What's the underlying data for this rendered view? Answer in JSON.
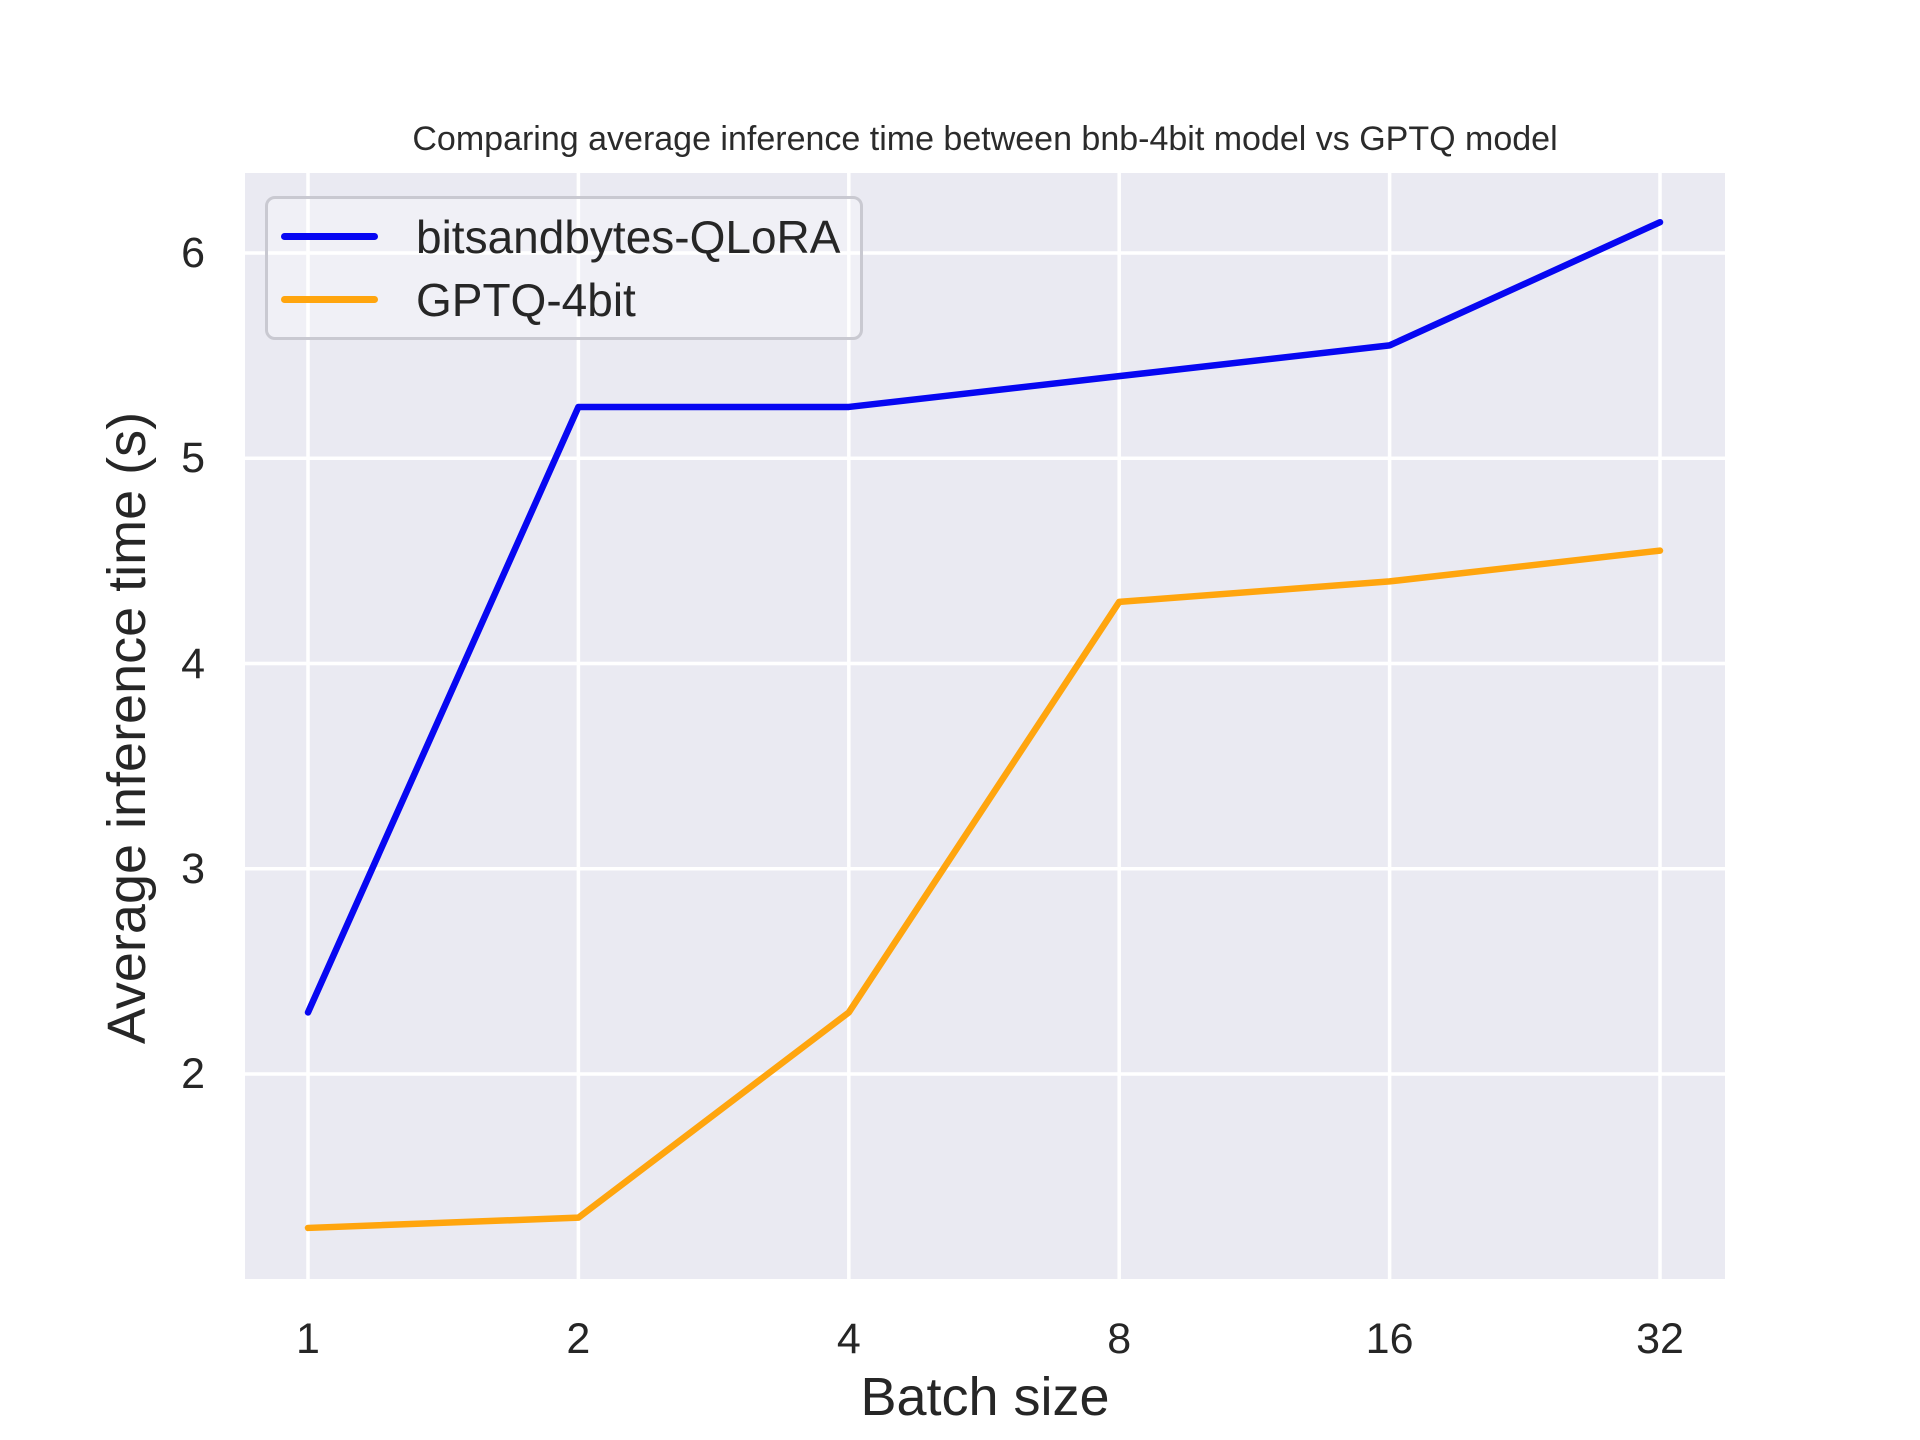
{
  "chart_data": {
    "type": "line",
    "title": "Comparing average inference time between bnb-4bit model vs GPTQ model",
    "xlabel": "Batch size",
    "ylabel": "Average inference time (s)",
    "x_scale": "log2",
    "categories": [
      1,
      2,
      4,
      8,
      16,
      32
    ],
    "series": [
      {
        "name": "bitsandbytes-QLoRA",
        "color": "#0707f2",
        "values": [
          2.3,
          5.25,
          5.25,
          5.4,
          5.55,
          6.15
        ]
      },
      {
        "name": "GPTQ-4bit",
        "color": "#ffa50e",
        "values": [
          1.25,
          1.3,
          2.3,
          4.3,
          4.4,
          4.55
        ]
      }
    ],
    "yticks": [
      2,
      3,
      4,
      5,
      6
    ],
    "ylim": [
      1.0,
      6.4
    ],
    "grid": true,
    "grid_color": "#ffffff",
    "plot_bg": "#eaeaf2",
    "text_color": "#262626",
    "legend_position": "upper left"
  }
}
